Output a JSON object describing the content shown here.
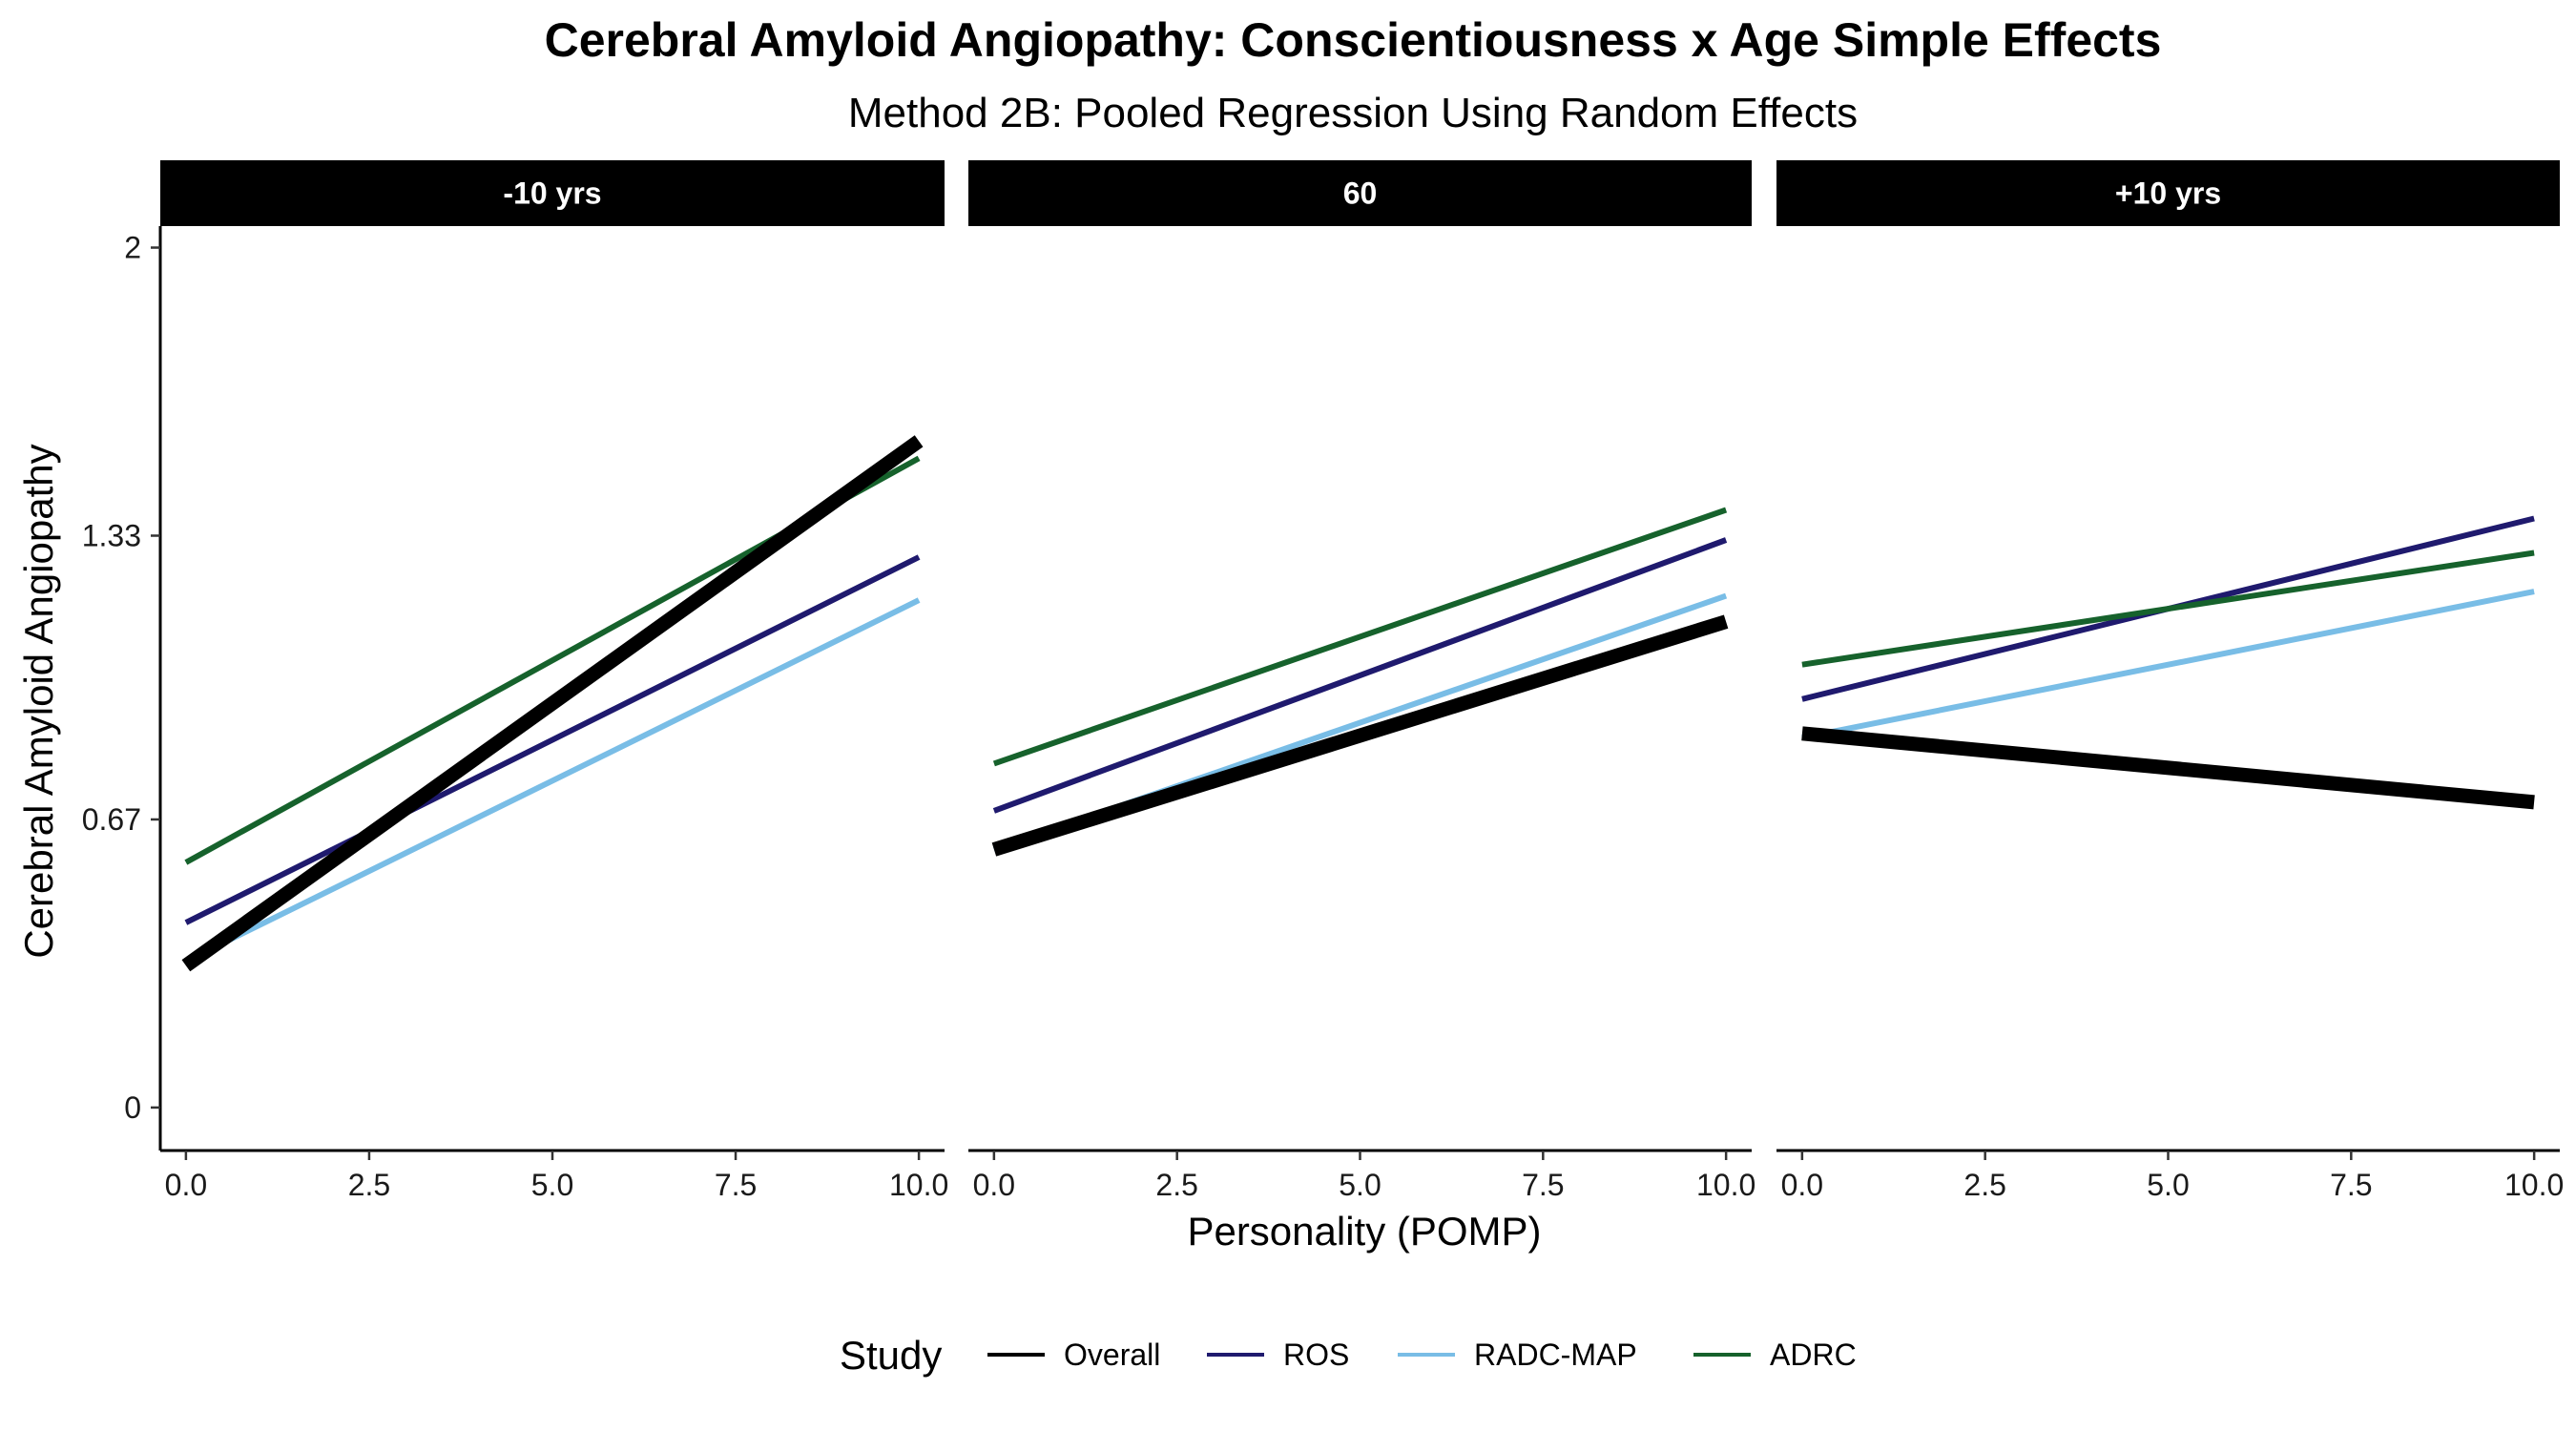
{
  "title": "Cerebral Amyloid Angiopathy: Conscientiousness x Age Simple Effects",
  "subtitle": "Method 2B: Pooled Regression Using Random Effects",
  "colors": {
    "Overall": "#000000",
    "ROS": "#1f1a6e",
    "RADC-MAP": "#79bde6",
    "ADRC": "#16622c"
  },
  "chart_data": {
    "type": "line",
    "title": "Cerebral Amyloid Angiopathy: Conscientiousness x Age Simple Effects",
    "subtitle": "Method 2B: Pooled Regression Using Random Effects",
    "xlabel": "Personality (POMP)",
    "ylabel": "Cerebral Amyloid Angiopathy",
    "xlim": [
      -0.35,
      10.35
    ],
    "ylim": [
      -0.1,
      2.05
    ],
    "x_ticks": [
      0.0,
      2.5,
      5.0,
      7.5,
      10.0
    ],
    "x_tick_labels": [
      "0.0",
      "2.5",
      "5.0",
      "7.5",
      "10.0"
    ],
    "y_ticks": [
      0,
      0.67,
      1.33,
      2
    ],
    "y_tick_labels": [
      "0",
      "0.67",
      "1.33",
      "2"
    ],
    "grid": false,
    "legend": {
      "title": "Study",
      "position": "bottom",
      "entries": [
        "Overall",
        "ROS",
        "RADC-MAP",
        "ADRC"
      ]
    },
    "facets": [
      {
        "label": "-10 yrs",
        "series": [
          {
            "name": "Overall",
            "x": [
              0,
              10
            ],
            "y": [
              0.33,
              1.55
            ]
          },
          {
            "name": "ROS",
            "x": [
              0,
              10
            ],
            "y": [
              0.43,
              1.28
            ]
          },
          {
            "name": "RADC-MAP",
            "x": [
              0,
              10
            ],
            "y": [
              0.34,
              1.18
            ]
          },
          {
            "name": "ADRC",
            "x": [
              0,
              10
            ],
            "y": [
              0.57,
              1.51
            ]
          }
        ]
      },
      {
        "label": "60",
        "series": [
          {
            "name": "Overall",
            "x": [
              0,
              10
            ],
            "y": [
              0.6,
              1.13
            ]
          },
          {
            "name": "ROS",
            "x": [
              0,
              10
            ],
            "y": [
              0.69,
              1.32
            ]
          },
          {
            "name": "RADC-MAP",
            "x": [
              0,
              10
            ],
            "y": [
              0.6,
              1.19
            ]
          },
          {
            "name": "ADRC",
            "x": [
              0,
              10
            ],
            "y": [
              0.8,
              1.39
            ]
          }
        ]
      },
      {
        "label": "+10 yrs",
        "series": [
          {
            "name": "Overall",
            "x": [
              0,
              10
            ],
            "y": [
              0.87,
              0.71
            ]
          },
          {
            "name": "ROS",
            "x": [
              0,
              10
            ],
            "y": [
              0.95,
              1.37
            ]
          },
          {
            "name": "RADC-MAP",
            "x": [
              0,
              10
            ],
            "y": [
              0.86,
              1.2
            ]
          },
          {
            "name": "ADRC",
            "x": [
              0,
              10
            ],
            "y": [
              1.03,
              1.29
            ]
          }
        ]
      }
    ]
  }
}
